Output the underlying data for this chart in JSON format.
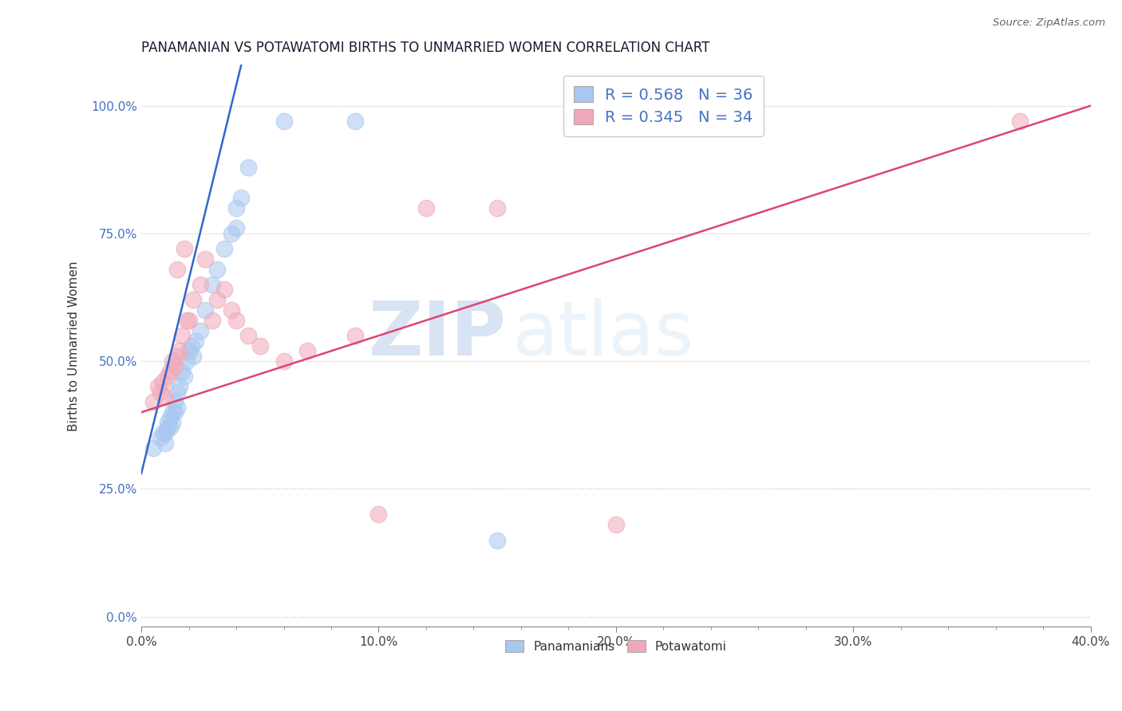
{
  "title": "PANAMANIAN VS POTAWATOMI BIRTHS TO UNMARRIED WOMEN CORRELATION CHART",
  "source": "Source: ZipAtlas.com",
  "ylabel": "Births to Unmarried Women",
  "xlim": [
    0.0,
    0.4
  ],
  "ylim": [
    -0.02,
    1.08
  ],
  "yticks": [
    0.0,
    0.25,
    0.5,
    0.75,
    1.0
  ],
  "ytick_labels": [
    "0.0%",
    "25.0%",
    "50.0%",
    "75.0%",
    "100.0%"
  ],
  "xticks": [
    0.0,
    0.1,
    0.2,
    0.3,
    0.4
  ],
  "xtick_labels": [
    "0.0%",
    "10.0%",
    "20.0%",
    "30.0%",
    "40.0%"
  ],
  "R_blue": 0.568,
  "N_blue": 36,
  "R_pink": 0.345,
  "N_pink": 34,
  "blue_color": "#a8c8f0",
  "pink_color": "#f0a8b8",
  "blue_line_color": "#3366cc",
  "pink_line_color": "#dd4477",
  "legend_label_blue": "Panamanians",
  "legend_label_pink": "Potawatomi",
  "watermark_zip": "ZIP",
  "watermark_atlas": "atlas",
  "blue_x": [
    0.005,
    0.008,
    0.009,
    0.01,
    0.01,
    0.011,
    0.011,
    0.012,
    0.012,
    0.013,
    0.013,
    0.014,
    0.014,
    0.015,
    0.015,
    0.016,
    0.017,
    0.018,
    0.019,
    0.02,
    0.021,
    0.022,
    0.023,
    0.025,
    0.027,
    0.03,
    0.032,
    0.035,
    0.038,
    0.04,
    0.04,
    0.042,
    0.045,
    0.06,
    0.09,
    0.15
  ],
  "blue_y": [
    0.33,
    0.35,
    0.36,
    0.34,
    0.36,
    0.37,
    0.38,
    0.37,
    0.39,
    0.38,
    0.4,
    0.42,
    0.4,
    0.44,
    0.41,
    0.45,
    0.48,
    0.47,
    0.5,
    0.52,
    0.53,
    0.51,
    0.54,
    0.56,
    0.6,
    0.65,
    0.68,
    0.72,
    0.75,
    0.8,
    0.76,
    0.82,
    0.88,
    0.97,
    0.97,
    0.15
  ],
  "pink_x": [
    0.005,
    0.007,
    0.008,
    0.009,
    0.01,
    0.011,
    0.012,
    0.013,
    0.014,
    0.015,
    0.015,
    0.016,
    0.017,
    0.018,
    0.019,
    0.02,
    0.022,
    0.025,
    0.027,
    0.03,
    0.032,
    0.035,
    0.038,
    0.04,
    0.045,
    0.05,
    0.06,
    0.07,
    0.09,
    0.1,
    0.12,
    0.15,
    0.2,
    0.37
  ],
  "pink_y": [
    0.42,
    0.45,
    0.44,
    0.46,
    0.43,
    0.47,
    0.48,
    0.5,
    0.49,
    0.51,
    0.68,
    0.52,
    0.55,
    0.72,
    0.58,
    0.58,
    0.62,
    0.65,
    0.7,
    0.58,
    0.62,
    0.64,
    0.6,
    0.58,
    0.55,
    0.53,
    0.5,
    0.52,
    0.55,
    0.2,
    0.8,
    0.8,
    0.18,
    0.97
  ]
}
